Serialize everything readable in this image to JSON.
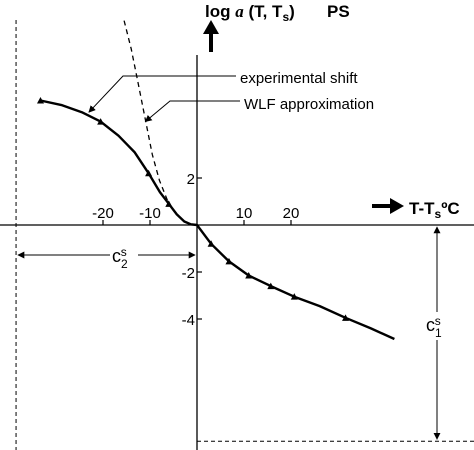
{
  "chart_data": {
    "type": "line",
    "title": "PS",
    "ylabel": "log a (T, Ts)",
    "xlabel": "T-TsºC",
    "xlim": [
      -39,
      57
    ],
    "ylim": [
      -9.3,
      9.6
    ],
    "x_ticks": [
      -20,
      -10,
      10,
      20
    ],
    "y_ticks": [
      2,
      -2,
      -4
    ],
    "series": [
      {
        "name": "experimental shift",
        "style": "solid-with-triangle-markers",
        "x": [
          -33.3,
          -28.7,
          -24.5,
          -20.5,
          -16.7,
          -13.3,
          -10.3,
          -7.9,
          -6.0,
          -4.3,
          -2.7,
          -1.3,
          0,
          3.0,
          6.8,
          11.0,
          15.7,
          20.7,
          26.1,
          31.6,
          37.0,
          42.0
        ],
        "y": [
          5.3,
          5.1,
          4.8,
          4.4,
          3.8,
          3.1,
          2.2,
          1.4,
          0.9,
          0.45,
          0.15,
          0.03,
          0,
          -0.8,
          -1.55,
          -2.15,
          -2.6,
          -3.05,
          -3.45,
          -3.95,
          -4.4,
          -4.85
        ]
      },
      {
        "name": "WLF approximation",
        "style": "dashed",
        "x": [
          -15.5,
          -14.0,
          -12.5,
          -11.0,
          -9.5,
          -8.0,
          -6.0
        ],
        "y": [
          8.7,
          7.5,
          6.0,
          4.5,
          3.0,
          1.9,
          0.9
        ]
      }
    ],
    "markers_x": [
      -33.3,
      -20.5,
      -10.3,
      -6.0,
      3.0,
      6.8,
      11.0,
      15.7,
      20.7,
      31.6
    ],
    "annotations": [
      {
        "text": "experimental shift",
        "points_to": [
          -23,
          4.8
        ]
      },
      {
        "text": "WLF approximation",
        "points_to": [
          -11,
          4.4
        ]
      }
    ],
    "constants": {
      "c1_label": "c",
      "c1_sub": "1",
      "c1_sup": "s",
      "c2_label": "c",
      "c2_sub": "2",
      "c2_sup": "s"
    },
    "c2_x": -38.5,
    "c1_y": -9.2,
    "grid": false
  }
}
